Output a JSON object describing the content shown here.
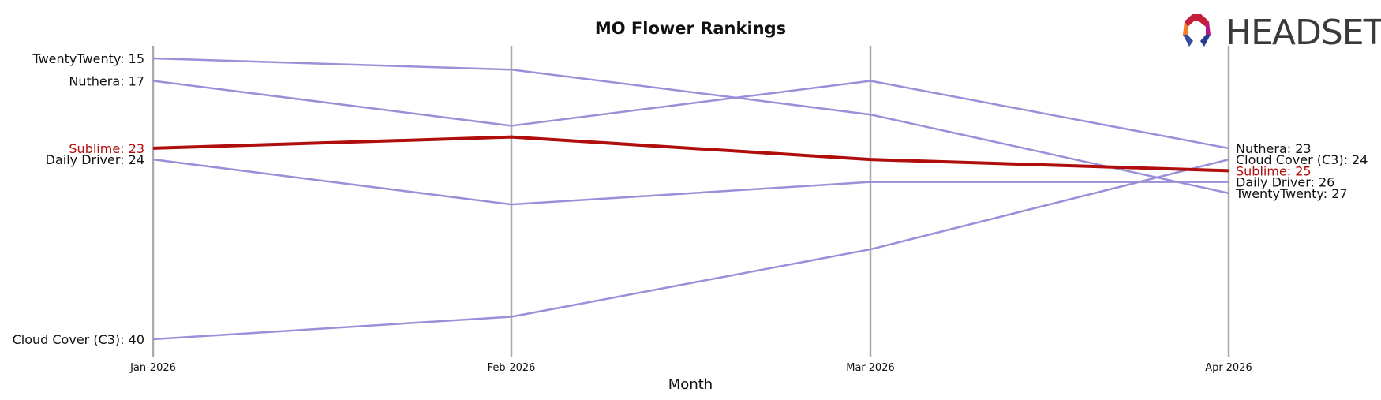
{
  "chart_data": {
    "type": "line",
    "title": "MO Flower Rankings",
    "xlabel": "Month",
    "ylabel": "",
    "x": [
      "Jan-2026",
      "Feb-2026",
      "Mar-2026",
      "Apr-2026"
    ],
    "y_inverted": true,
    "ylim": [
      14,
      41
    ],
    "grid": false,
    "highlight": "Sublime",
    "series": [
      {
        "name": "TwentyTwenty",
        "values": [
          15,
          16,
          20,
          27
        ],
        "start_label": "TwentyTwenty: 15",
        "end_label": "TwentyTwenty: 27",
        "color": "#9a8fd8",
        "highlight": false
      },
      {
        "name": "Nuthera",
        "values": [
          17,
          21,
          17,
          23
        ],
        "start_label": "Nuthera: 17",
        "end_label": "Nuthera: 23",
        "color": "#9a8fd8",
        "highlight": false
      },
      {
        "name": "Daily Driver",
        "values": [
          24,
          28,
          26,
          26
        ],
        "start_label": "Daily Driver: 24",
        "end_label": "Daily Driver: 26",
        "color": "#9a8fd8",
        "highlight": false
      },
      {
        "name": "Cloud Cover (C3)",
        "values": [
          40,
          38,
          32,
          24
        ],
        "start_label": "Cloud Cover (C3): 40",
        "end_label": "Cloud Cover (C3): 24",
        "color": "#9a8fd8",
        "highlight": false
      },
      {
        "name": "Sublime",
        "values": [
          23,
          22,
          24,
          25
        ],
        "start_label": "Sublime: 23",
        "end_label": "Sublime: 25",
        "color": "#b00d0d",
        "highlight": true
      }
    ]
  },
  "logo": {
    "text": "HEADSET"
  },
  "colors": {
    "highlight": "#b00d0d",
    "others": "#9a8fd8",
    "axis_lines": "#aaaaaa"
  }
}
